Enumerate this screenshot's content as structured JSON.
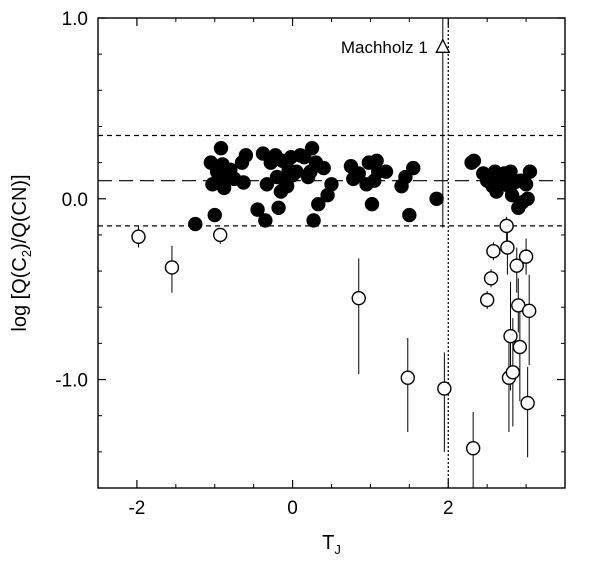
{
  "chart_data": {
    "type": "scatter",
    "title": "",
    "xlabel": "T",
    "xlabel_sub": "J",
    "ylabel_parts": [
      "log [Q(C",
      "2",
      ")/Q(CN)]"
    ],
    "xlim": [
      -2.5,
      3.5
    ],
    "ylim": [
      -1.6,
      1.0
    ],
    "x_ticks": [
      -2,
      0,
      2
    ],
    "x_tick_labels": [
      "-2",
      "0",
      "2"
    ],
    "y_ticks": [
      -1.0,
      0.0,
      1.0
    ],
    "y_tick_labels": [
      "-1.0",
      "0.0",
      "1.0"
    ],
    "grid": false,
    "reference_lines": {
      "mean": 0.1,
      "upper": 0.35,
      "lower": -0.15,
      "vertical_x": 2.0
    },
    "annotation": {
      "label": "Machholz 1",
      "x": 1.93,
      "y": 0.84,
      "err_low": 1.0,
      "err_high": 1.0
    },
    "series": [
      {
        "marker": "filled-circle",
        "points": [
          [
            -1.25,
            -0.14
          ],
          [
            -1.05,
            0.2
          ],
          [
            -1.03,
            0.08
          ],
          [
            -1.0,
            -0.09
          ],
          [
            -0.97,
            0.15
          ],
          [
            -0.95,
            0.13
          ],
          [
            -0.92,
            0.28
          ],
          [
            -0.9,
            0.19
          ],
          [
            -0.88,
            0.06
          ],
          [
            -0.85,
            0.12
          ],
          [
            -0.8,
            0.16
          ],
          [
            -0.75,
            0.11
          ],
          [
            -0.65,
            0.2
          ],
          [
            -0.63,
            0.09
          ],
          [
            -0.6,
            0.24
          ],
          [
            -0.45,
            -0.06
          ],
          [
            -0.38,
            0.25
          ],
          [
            -0.35,
            -0.12
          ],
          [
            -0.33,
            0.08
          ],
          [
            -0.28,
            0.2
          ],
          [
            -0.22,
            0.24
          ],
          [
            -0.2,
            0.12
          ],
          [
            -0.18,
            -0.05
          ],
          [
            -0.15,
            0.04
          ],
          [
            -0.13,
            0.21
          ],
          [
            -0.1,
            0.1
          ],
          [
            -0.07,
            0.07
          ],
          [
            -0.05,
            0.16
          ],
          [
            -0.02,
            0.23
          ],
          [
            0.0,
            0.13
          ],
          [
            0.05,
            0.15
          ],
          [
            0.1,
            0.24
          ],
          [
            0.15,
            0.23
          ],
          [
            0.2,
            0.12
          ],
          [
            0.23,
            0.15
          ],
          [
            0.25,
            0.28
          ],
          [
            0.27,
            -0.12
          ],
          [
            0.3,
            0.2
          ],
          [
            0.33,
            -0.03
          ],
          [
            0.4,
            0.17
          ],
          [
            0.45,
            0.02
          ],
          [
            0.5,
            0.08
          ],
          [
            0.75,
            0.18
          ],
          [
            0.78,
            0.11
          ],
          [
            0.85,
            0.14
          ],
          [
            0.95,
            0.08
          ],
          [
            0.98,
            0.2
          ],
          [
            1.02,
            -0.03
          ],
          [
            1.05,
            0.1
          ],
          [
            1.08,
            0.21
          ],
          [
            1.1,
            0.15
          ],
          [
            1.2,
            0.15
          ],
          [
            1.4,
            0.07
          ],
          [
            1.45,
            0.12
          ],
          [
            1.5,
            -0.09
          ],
          [
            1.55,
            0.17
          ],
          [
            1.85,
            0.0
          ],
          [
            2.3,
            0.2
          ],
          [
            2.33,
            0.21
          ],
          [
            2.45,
            0.14
          ],
          [
            2.5,
            0.1
          ],
          [
            2.55,
            0.11
          ],
          [
            2.57,
            0.07
          ],
          [
            2.6,
            0.15
          ],
          [
            2.62,
            0.04
          ],
          [
            2.65,
            0.12
          ],
          [
            2.68,
            0.09
          ],
          [
            2.72,
            0.14
          ],
          [
            2.75,
            0.11
          ],
          [
            2.78,
            0.07
          ],
          [
            2.8,
            0.15
          ],
          [
            2.82,
            0.02
          ],
          [
            2.85,
            0.09
          ],
          [
            2.9,
            -0.05
          ],
          [
            2.93,
            0.1
          ],
          [
            2.95,
            -0.02
          ],
          [
            3.0,
            0.08
          ],
          [
            3.02,
            0.0
          ],
          [
            3.05,
            0.15
          ]
        ]
      },
      {
        "marker": "open-circle",
        "points": [
          [
            -1.98,
            -0.21,
            0.06,
            0.06
          ],
          [
            -1.55,
            -0.38,
            0.14,
            0.12
          ],
          [
            -0.93,
            -0.2,
            0.05,
            0.03
          ],
          [
            0.85,
            -0.55,
            0.42,
            0.22
          ],
          [
            1.48,
            -0.99,
            0.3,
            0.22
          ],
          [
            1.95,
            -1.05,
            0.35,
            0.2
          ],
          [
            2.32,
            -1.38,
            0.25,
            0.2
          ],
          [
            2.5,
            -0.56,
            0.05,
            0.05
          ],
          [
            2.55,
            -0.44,
            0.05,
            0.05
          ],
          [
            2.58,
            -0.29,
            0.05,
            0.05
          ],
          [
            2.75,
            -0.15,
            0.1,
            0.05
          ],
          [
            2.76,
            -0.27,
            0.15,
            0.12
          ],
          [
            2.78,
            -0.99,
            0.3,
            0.2
          ],
          [
            2.8,
            -0.76,
            0.3,
            0.3
          ],
          [
            2.83,
            -0.96,
            0.3,
            0.3
          ],
          [
            2.88,
            -0.37,
            0.15,
            0.1
          ],
          [
            2.9,
            -0.59,
            0.15,
            0.15
          ],
          [
            2.92,
            -0.82,
            0.3,
            0.2
          ],
          [
            3.0,
            -0.32,
            0.1,
            0.1
          ],
          [
            3.02,
            -1.13,
            0.3,
            0.2
          ],
          [
            3.04,
            -0.62,
            0.3,
            0.2
          ]
        ]
      }
    ]
  }
}
